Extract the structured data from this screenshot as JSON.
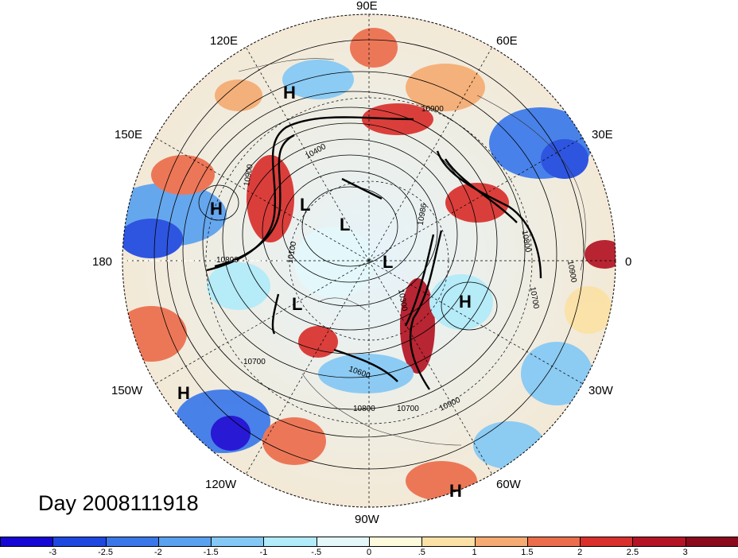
{
  "map": {
    "projection": "polar stereographic, North Pole centered",
    "longitude_labels": [
      "90E",
      "60E",
      "30E",
      "0",
      "30W",
      "60W",
      "90W",
      "120W",
      "150W",
      "180",
      "150E",
      "120E"
    ],
    "pressure_centers": [
      {
        "label": "H"
      },
      {
        "label": "H"
      },
      {
        "label": "L"
      },
      {
        "label": "L"
      },
      {
        "label": "L"
      },
      {
        "label": "L"
      },
      {
        "label": "H"
      },
      {
        "label": "H"
      },
      {
        "label": "H"
      }
    ],
    "contour_labels": [
      "10900",
      "10900",
      "10800",
      "10700",
      "10600",
      "10800",
      "10700",
      "10900",
      "10800",
      "10900",
      "10700",
      "10100",
      "10300",
      "10400",
      "10986"
    ],
    "colors": {
      "strong_negative": "#1a2fd6",
      "negative": "#4d8fe8",
      "weak_negative": "#a8e4f7",
      "neutral": "#fdfbe6",
      "weak_positive": "#f7cf95",
      "positive": "#e8553e",
      "strong_positive": "#a50f15"
    }
  },
  "title": {
    "day": "Day 2008111918"
  },
  "colorbar": {
    "ticks": [
      "-3",
      "-2.5",
      "-2",
      "-1.5",
      "-1",
      "-.5",
      "0",
      ".5",
      "1",
      "1.5",
      "2",
      "2.5",
      "3"
    ],
    "colors": [
      "#1607d4",
      "#1e48e0",
      "#3a78ea",
      "#5aa1ef",
      "#84c8f5",
      "#b2ebfa",
      "#e4f8fb",
      "#fefbdc",
      "#fbe1a5",
      "#f5ab72",
      "#ec6d4c",
      "#d9302d",
      "#b41424",
      "#8a0a1c"
    ]
  }
}
